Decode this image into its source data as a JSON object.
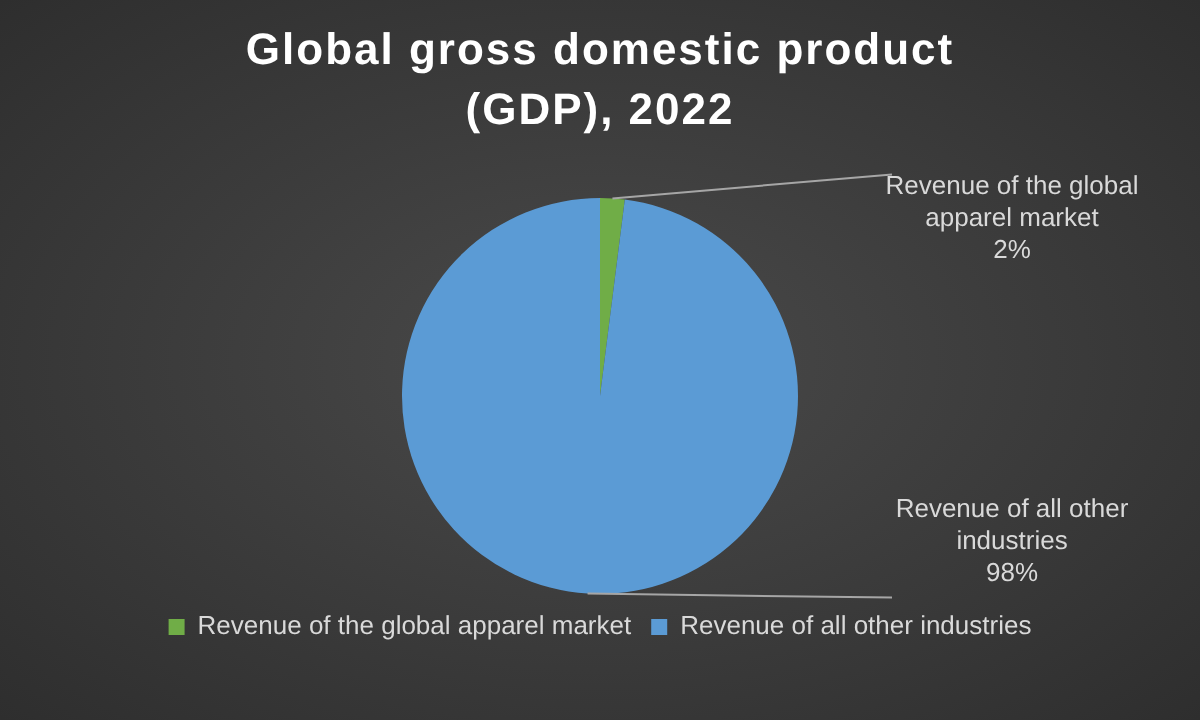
{
  "chart_data": {
    "type": "pie",
    "title": "Global gross domestic product (GDP), 2022",
    "categories": [
      "Revenue of the global apparel market",
      "Revenue of all other industries"
    ],
    "values": [
      2,
      98
    ],
    "value_labels": [
      "2%",
      "98%"
    ],
    "colors": [
      "#70ad47",
      "#5b9bd5"
    ],
    "legend": "bottom"
  }
}
